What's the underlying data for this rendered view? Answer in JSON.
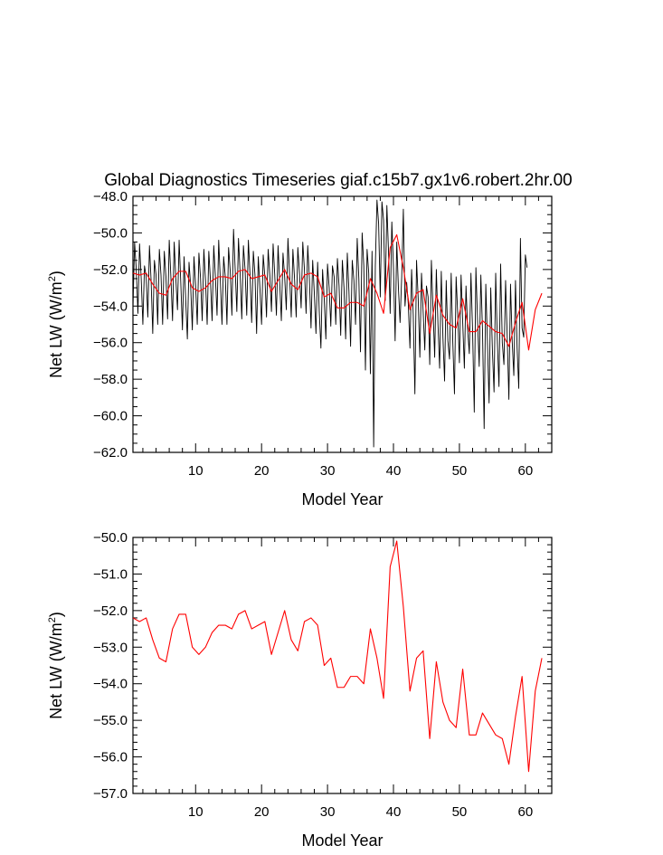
{
  "title": "Global Diagnostics Timeseries giaf.c15b7.gx1v6.robert.2hr.00",
  "colors": {
    "monthly": "#000000",
    "annual": "#ff0000",
    "axes": "#000000"
  },
  "chart_data": [
    {
      "name": "top",
      "type": "line",
      "xlabel": "Model Year",
      "ylabel_main": "Net LW (W/m",
      "ylabel_sup": "2",
      "ylabel_end": ")",
      "xlim": [
        0.5,
        64.0
      ],
      "ylim": [
        -62.0,
        -48.0
      ],
      "xticks": [
        10,
        20,
        30,
        40,
        50,
        60
      ],
      "yticks": [
        -62,
        -60,
        -58,
        -56,
        -54,
        -52,
        -50,
        -48
      ],
      "ytick_labels": [
        "−62.0",
        "−60.0",
        "−58.0",
        "−56.0",
        "−54.0",
        "−52.0",
        "−50.0",
        "−48.0"
      ],
      "series": [
        {
          "name": "monthly",
          "color": "#000000",
          "x_start": 0.5,
          "x_step": 0.25,
          "values": [
            -54.1,
            -50.5,
            -52.0,
            -54.4,
            -50.6,
            -52.5,
            -55.0,
            -51.8,
            -52.4,
            -54.6,
            -50.7,
            -52.6,
            -55.5,
            -51.5,
            -52.3,
            -55.0,
            -50.9,
            -52.3,
            -55.0,
            -51.0,
            -52.4,
            -54.7,
            -50.4,
            -52.4,
            -54.8,
            -50.5,
            -52.5,
            -54.2,
            -50.4,
            -52.7,
            -55.3,
            -51.3,
            -53.7,
            -55.8,
            -51.6,
            -52.9,
            -55.3,
            -51.3,
            -52.9,
            -55.0,
            -51.1,
            -52.5,
            -54.8,
            -50.9,
            -52.6,
            -55.0,
            -51.0,
            -52.6,
            -54.8,
            -50.7,
            -52.4,
            -54.5,
            -50.4,
            -52.6,
            -55.0,
            -51.3,
            -52.4,
            -55.0,
            -50.8,
            -52.1,
            -54.5,
            -49.8,
            -52.0,
            -54.3,
            -50.3,
            -52.2,
            -54.7,
            -50.7,
            -52.0,
            -54.5,
            -50.4,
            -52.3,
            -54.9,
            -51.0,
            -52.3,
            -55.5,
            -51.3,
            -53.0,
            -55.0,
            -51.2,
            -52.4,
            -54.6,
            -50.9,
            -52.3,
            -54.3,
            -50.6,
            -52.3,
            -54.5,
            -50.7,
            -52.7,
            -54.8,
            -51.1,
            -52.4,
            -54.2,
            -50.3,
            -52.3,
            -54.6,
            -50.9,
            -52.5,
            -54.6,
            -50.8,
            -52.2,
            -54.1,
            -50.5,
            -52.0,
            -54.4,
            -50.7,
            -52.5,
            -55.2,
            -51.5,
            -53.3,
            -55.5,
            -51.6,
            -54.3,
            -56.3,
            -52.0,
            -53.6,
            -55.8,
            -51.7,
            -53.0,
            -55.1,
            -51.8,
            -52.4,
            -55.0,
            -51.4,
            -52.9,
            -55.6,
            -51.5,
            -53.0,
            -55.8,
            -51.1,
            -53.2,
            -56.2,
            -51.5,
            -52.6,
            -55.0,
            -50.3,
            -52.5,
            -56.5,
            -50.0,
            -51.8,
            -57.5,
            -50.9,
            -52.2,
            -57.7,
            -51.0,
            -61.7,
            -51.8,
            -48.2,
            -49.5,
            -53.5,
            -48.3,
            -49.3,
            -53.7,
            -48.5,
            -51.0,
            -54.4,
            -49.4,
            -51.9,
            -55.9,
            -50.5,
            -53.0,
            -54.9,
            -52.4,
            -48.7,
            -54.0,
            -52.7,
            -53.9,
            -56.3,
            -52.0,
            -54.5,
            -58.8,
            -51.5,
            -53.6,
            -56.8,
            -52.2,
            -54.3,
            -56.4,
            -52.9,
            -53.5,
            -57.2,
            -51.5,
            -54.2,
            -56.8,
            -52.0,
            -55.0,
            -57.4,
            -52.1,
            -55.7,
            -58.1,
            -52.6,
            -55.9,
            -56.9,
            -52.2,
            -56.0,
            -58.8,
            -52.4,
            -54.5,
            -57.1,
            -52.3,
            -54.9,
            -57.4,
            -52.9,
            -55.3,
            -56.6,
            -52.2,
            -55.4,
            -59.8,
            -51.9,
            -54.8,
            -57.3,
            -52.3,
            -55.3,
            -60.7,
            -52.8,
            -56.0,
            -59.3,
            -53.0,
            -56.4,
            -58.7,
            -52.2,
            -55.9,
            -58.4,
            -51.7,
            -56.0,
            -57.2,
            -52.6,
            -55.7,
            -59.1,
            -52.8,
            -55.9,
            -57.8,
            -52.6,
            -56.3,
            -58.5,
            -50.3,
            -55.2,
            -55.7,
            -51.2,
            -51.9
          ]
        },
        {
          "name": "annual",
          "color": "#ff0000",
          "x_start": 0.5,
          "x_step": 1.0,
          "values": [
            -52.2,
            -52.3,
            -52.2,
            -52.8,
            -53.3,
            -53.4,
            -52.5,
            -52.1,
            -52.1,
            -53.0,
            -53.2,
            -53.0,
            -52.6,
            -52.4,
            -52.4,
            -52.5,
            -52.1,
            -52.0,
            -52.5,
            -52.4,
            -52.3,
            -53.2,
            -52.6,
            -52.0,
            -52.8,
            -53.1,
            -52.3,
            -52.2,
            -52.4,
            -53.5,
            -53.3,
            -54.1,
            -54.1,
            -53.8,
            -53.8,
            -54.0,
            -52.5,
            -53.3,
            -54.4,
            -50.8,
            -50.1,
            -51.9,
            -54.2,
            -53.3,
            -53.1,
            -55.5,
            -53.4,
            -54.5,
            -55.0,
            -55.2,
            -53.6,
            -55.4,
            -55.4,
            -54.8,
            -55.1,
            -55.4,
            -55.5,
            -56.2,
            -54.9,
            -53.8,
            -56.4,
            -54.2,
            -53.3
          ]
        }
      ]
    },
    {
      "name": "bottom",
      "type": "line",
      "xlabel": "Model Year",
      "ylabel_main": "Net LW (W/m",
      "ylabel_sup": "2",
      "ylabel_end": ")",
      "xlim": [
        0.5,
        64.0
      ],
      "ylim": [
        -57.0,
        -50.0
      ],
      "xticks": [
        10,
        20,
        30,
        40,
        50,
        60
      ],
      "yticks": [
        -57,
        -56,
        -55,
        -54,
        -53,
        -52,
        -51,
        -50
      ],
      "ytick_labels": [
        "−57.0",
        "−56.0",
        "−55.0",
        "−54.0",
        "−53.0",
        "−52.0",
        "−51.0",
        "−50.0"
      ],
      "series": [
        {
          "name": "annual",
          "color": "#ff0000",
          "x_start": 0.5,
          "x_step": 1.0,
          "values": [
            -52.2,
            -52.3,
            -52.2,
            -52.8,
            -53.3,
            -53.4,
            -52.5,
            -52.1,
            -52.1,
            -53.0,
            -53.2,
            -53.0,
            -52.6,
            -52.4,
            -52.4,
            -52.5,
            -52.1,
            -52.0,
            -52.5,
            -52.4,
            -52.3,
            -53.2,
            -52.6,
            -52.0,
            -52.8,
            -53.1,
            -52.3,
            -52.2,
            -52.4,
            -53.5,
            -53.3,
            -54.1,
            -54.1,
            -53.8,
            -53.8,
            -54.0,
            -52.5,
            -53.3,
            -54.4,
            -50.8,
            -50.1,
            -51.9,
            -54.2,
            -53.3,
            -53.1,
            -55.5,
            -53.4,
            -54.5,
            -55.0,
            -55.2,
            -53.6,
            -55.4,
            -55.4,
            -54.8,
            -55.1,
            -55.4,
            -55.5,
            -56.2,
            -54.9,
            -53.8,
            -56.4,
            -54.2,
            -53.3
          ]
        }
      ]
    }
  ]
}
